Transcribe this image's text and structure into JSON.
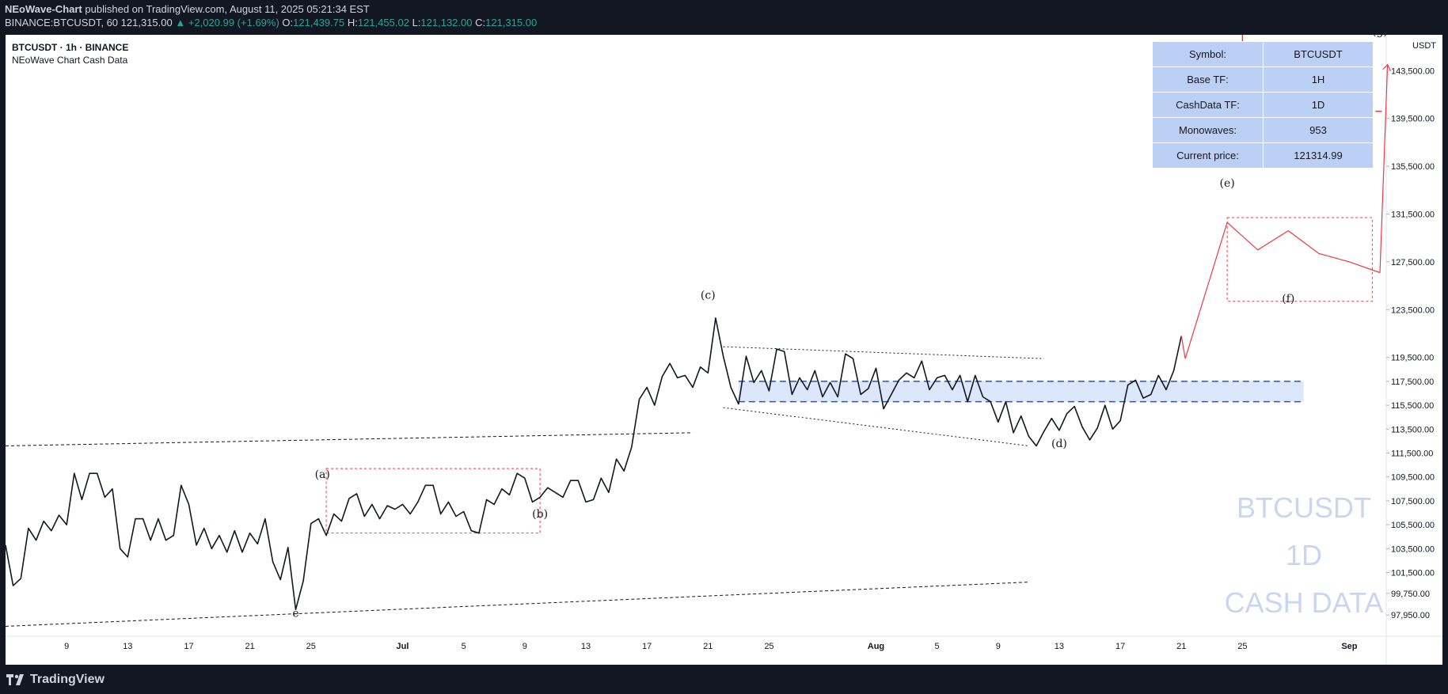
{
  "topbar": {
    "author": "NEoWave-Chart",
    "published_text": "published on TradingView.com, August 11, 2025 05:21:34 EST",
    "ticker": "BINANCE:BTCUSDT, 60",
    "last": "121,315.00",
    "change": "+2,020.99 (+1.69%)",
    "o_label": "O:",
    "o": "121,439.75",
    "h_label": "H:",
    "h": "121,455.02",
    "l_label": "L:",
    "l": "121,132.00",
    "c_label": "C:",
    "c": "121,315.00"
  },
  "header": {
    "symbol_line": "BTCUSDT · 1h · BINANCE",
    "indicator": "NEoWave Chart Cash Data"
  },
  "axis_currency": "USDT",
  "info_table": [
    {
      "key": "Symbol:",
      "value": "BTCUSDT"
    },
    {
      "key": "Base TF:",
      "value": "1H"
    },
    {
      "key": "CashData TF:",
      "value": "1D"
    },
    {
      "key": "Monowaves:",
      "value": "953"
    },
    {
      "key": "Current price:",
      "value": "121314.99"
    }
  ],
  "watermark": [
    "BTCUSDT",
    "1D",
    "CASH DATA"
  ],
  "footer": {
    "brand": "TradingView"
  },
  "colors": {
    "background": "#ffffff",
    "price_line": "#131722",
    "projection": "#f23645",
    "zone_fill": "#dce7fb",
    "zone_border": "#1e53e5",
    "table_cell": "#bcd0f5",
    "watermark": "#c9d6f1"
  },
  "chart_data": {
    "type": "line",
    "title": "BTCUSDT · 1h · BINANCE",
    "y_ticks": [
      97950,
      99750,
      101500,
      103500,
      105500,
      107500,
      109500,
      111500,
      113500,
      115500,
      117500,
      119500,
      123500,
      127500,
      131500,
      135500,
      139500,
      143500
    ],
    "y_tick_labels": [
      "97,950.00",
      "99,750.00",
      "101,500.00",
      "103,500.00",
      "105,500.00",
      "107,500.00",
      "109,500.00",
      "111,500.00",
      "113,500.00",
      "115,500.00",
      "117,500.00",
      "119,500.00",
      "123,500.00",
      "127,500.00",
      "131,500.00",
      "135,500.00",
      "139,500.00",
      "143,500.00"
    ],
    "ylim": [
      96700,
      146500
    ],
    "x_range": [
      "2025-06-05",
      "2025-09-03"
    ],
    "x_ticks": [
      {
        "date": "2025-06-09",
        "label": "9"
      },
      {
        "date": "2025-06-13",
        "label": "13"
      },
      {
        "date": "2025-06-17",
        "label": "17"
      },
      {
        "date": "2025-06-21",
        "label": "21"
      },
      {
        "date": "2025-06-25",
        "label": "25"
      },
      {
        "date": "2025-07-01",
        "label": "Jul"
      },
      {
        "date": "2025-07-05",
        "label": "5"
      },
      {
        "date": "2025-07-09",
        "label": "9"
      },
      {
        "date": "2025-07-13",
        "label": "13"
      },
      {
        "date": "2025-07-17",
        "label": "17"
      },
      {
        "date": "2025-07-21",
        "label": "21"
      },
      {
        "date": "2025-07-25",
        "label": "25"
      },
      {
        "date": "2025-08-01",
        "label": "Aug"
      },
      {
        "date": "2025-08-05",
        "label": "5"
      },
      {
        "date": "2025-08-09",
        "label": "9"
      },
      {
        "date": "2025-08-13",
        "label": "13"
      },
      {
        "date": "2025-08-17",
        "label": "17"
      },
      {
        "date": "2025-08-21",
        "label": "21"
      },
      {
        "date": "2025-08-25",
        "label": "25"
      },
      {
        "date": "2025-09-01",
        "label": "Sep"
      }
    ],
    "series": [
      {
        "points": [
          [
            "2025-06-05",
            103800
          ],
          [
            "2025-06-05T12",
            100400
          ],
          [
            "2025-06-06",
            101000
          ],
          [
            "2025-06-06T12",
            105200
          ],
          [
            "2025-06-07",
            104200
          ],
          [
            "2025-06-07T12",
            105800
          ],
          [
            "2025-06-08",
            105000
          ],
          [
            "2025-06-08T12",
            106300
          ],
          [
            "2025-06-09",
            105500
          ],
          [
            "2025-06-09T12",
            109800
          ],
          [
            "2025-06-10",
            107600
          ],
          [
            "2025-06-10T12",
            109800
          ],
          [
            "2025-06-11",
            109800
          ],
          [
            "2025-06-11T12",
            107800
          ],
          [
            "2025-06-12",
            108500
          ],
          [
            "2025-06-12T12",
            103500
          ],
          [
            "2025-06-13",
            102800
          ],
          [
            "2025-06-13T12",
            106000
          ],
          [
            "2025-06-14",
            106000
          ],
          [
            "2025-06-14T12",
            104200
          ],
          [
            "2025-06-15",
            106000
          ],
          [
            "2025-06-15T12",
            104200
          ],
          [
            "2025-06-16",
            104600
          ],
          [
            "2025-06-16T12",
            108800
          ],
          [
            "2025-06-17",
            107200
          ],
          [
            "2025-06-17T12",
            103800
          ],
          [
            "2025-06-18",
            105200
          ],
          [
            "2025-06-18T12",
            103500
          ],
          [
            "2025-06-19",
            104600
          ],
          [
            "2025-06-19T12",
            103200
          ],
          [
            "2025-06-20",
            105000
          ],
          [
            "2025-06-20T12",
            103200
          ],
          [
            "2025-06-21",
            104800
          ],
          [
            "2025-06-21T12",
            103900
          ],
          [
            "2025-06-22",
            106000
          ],
          [
            "2025-06-22T12",
            102400
          ],
          [
            "2025-06-23",
            100900
          ],
          [
            "2025-06-23T12",
            103600
          ],
          [
            "2025-06-24",
            98400
          ],
          [
            "2025-06-24T12",
            100800
          ],
          [
            "2025-06-25",
            105600
          ],
          [
            "2025-06-25T12",
            106000
          ],
          [
            "2025-06-26",
            104600
          ],
          [
            "2025-06-26T12",
            106400
          ],
          [
            "2025-06-27",
            105800
          ],
          [
            "2025-06-27T12",
            107700
          ],
          [
            "2025-06-28",
            108100
          ],
          [
            "2025-06-28T12",
            106200
          ],
          [
            "2025-06-29",
            107200
          ],
          [
            "2025-06-29T12",
            106000
          ],
          [
            "2025-06-30",
            107100
          ],
          [
            "2025-06-30T12",
            106800
          ],
          [
            "2025-07-01",
            107200
          ],
          [
            "2025-07-01T12",
            106400
          ],
          [
            "2025-07-02",
            107400
          ],
          [
            "2025-07-02T12",
            108800
          ],
          [
            "2025-07-03",
            108800
          ],
          [
            "2025-07-03T12",
            106400
          ],
          [
            "2025-07-04",
            107400
          ],
          [
            "2025-07-04T12",
            106200
          ],
          [
            "2025-07-05",
            106600
          ],
          [
            "2025-07-05T12",
            105000
          ],
          [
            "2025-07-06",
            104800
          ],
          [
            "2025-07-06T12",
            107600
          ],
          [
            "2025-07-07",
            107200
          ],
          [
            "2025-07-07T12",
            108500
          ],
          [
            "2025-07-08",
            108000
          ],
          [
            "2025-07-08T12",
            109800
          ],
          [
            "2025-07-09",
            109400
          ],
          [
            "2025-07-09T12",
            107400
          ],
          [
            "2025-07-10",
            107800
          ],
          [
            "2025-07-10T12",
            108600
          ],
          [
            "2025-07-11",
            108200
          ],
          [
            "2025-07-11T12",
            107800
          ],
          [
            "2025-07-12",
            109200
          ],
          [
            "2025-07-12T12",
            109200
          ],
          [
            "2025-07-13",
            107400
          ],
          [
            "2025-07-13T12",
            107600
          ],
          [
            "2025-07-14",
            109400
          ],
          [
            "2025-07-14T12",
            108200
          ],
          [
            "2025-07-15",
            111000
          ],
          [
            "2025-07-15T12",
            110000
          ],
          [
            "2025-07-16",
            112000
          ],
          [
            "2025-07-16T12",
            116000
          ],
          [
            "2025-07-17",
            117000
          ],
          [
            "2025-07-17T12",
            115500
          ],
          [
            "2025-07-18",
            117900
          ],
          [
            "2025-07-18T12",
            119000
          ],
          [
            "2025-07-19",
            117800
          ],
          [
            "2025-07-19T12",
            118000
          ],
          [
            "2025-07-20",
            117000
          ],
          [
            "2025-07-20T12",
            118700
          ],
          [
            "2025-07-21",
            118200
          ],
          [
            "2025-07-21T12",
            122800
          ],
          [
            "2025-07-22",
            119600
          ],
          [
            "2025-07-22T12",
            117000
          ],
          [
            "2025-07-23",
            115600
          ],
          [
            "2025-07-23T12",
            119600
          ],
          [
            "2025-07-24",
            117400
          ],
          [
            "2025-07-24T12",
            118400
          ],
          [
            "2025-07-25",
            116700
          ],
          [
            "2025-07-25T12",
            120200
          ],
          [
            "2025-07-26",
            120000
          ],
          [
            "2025-07-26T12",
            116400
          ],
          [
            "2025-07-27",
            117800
          ],
          [
            "2025-07-27T12",
            116800
          ],
          [
            "2025-07-28",
            118400
          ],
          [
            "2025-07-28T12",
            116200
          ],
          [
            "2025-07-29",
            117400
          ],
          [
            "2025-07-29T12",
            116200
          ],
          [
            "2025-07-30",
            119800
          ],
          [
            "2025-07-30T12",
            119400
          ],
          [
            "2025-07-31",
            116400
          ],
          [
            "2025-07-31T12",
            116900
          ],
          [
            "2025-08-01",
            118600
          ],
          [
            "2025-08-01T12",
            115200
          ],
          [
            "2025-08-02",
            116400
          ],
          [
            "2025-08-02T12",
            117600
          ],
          [
            "2025-08-03",
            118200
          ],
          [
            "2025-08-03T12",
            117800
          ],
          [
            "2025-08-04",
            119200
          ],
          [
            "2025-08-04T12",
            116800
          ],
          [
            "2025-08-05",
            117800
          ],
          [
            "2025-08-05T12",
            118000
          ],
          [
            "2025-08-06",
            116800
          ],
          [
            "2025-08-06T12",
            118000
          ],
          [
            "2025-08-07",
            115800
          ],
          [
            "2025-08-07T12",
            118000
          ],
          [
            "2025-08-08",
            116200
          ],
          [
            "2025-08-08T12",
            115800
          ],
          [
            "2025-08-09",
            114100
          ],
          [
            "2025-08-09T12",
            115800
          ],
          [
            "2025-08-10",
            113200
          ],
          [
            "2025-08-10T12",
            114600
          ],
          [
            "2025-08-11",
            112900
          ],
          [
            "2025-08-11T12",
            112100
          ],
          [
            "2025-08-12",
            113300
          ],
          [
            "2025-08-12T12",
            114400
          ],
          [
            "2025-08-13",
            113400
          ],
          [
            "2025-08-13T12",
            114800
          ],
          [
            "2025-08-14",
            115400
          ],
          [
            "2025-08-14T12",
            113700
          ],
          [
            "2025-08-15",
            112600
          ],
          [
            "2025-08-15T12",
            113600
          ],
          [
            "2025-08-16",
            115500
          ],
          [
            "2025-08-16T12",
            113500
          ],
          [
            "2025-08-17",
            114200
          ],
          [
            "2025-08-17T12",
            117200
          ],
          [
            "2025-08-18",
            117600
          ],
          [
            "2025-08-18T12",
            116100
          ],
          [
            "2025-08-19",
            116400
          ],
          [
            "2025-08-19T12",
            118000
          ],
          [
            "2025-08-20",
            116800
          ],
          [
            "2025-08-20T12",
            118400
          ],
          [
            "2025-08-21",
            121300
          ]
        ]
      },
      {
        "name": "projection",
        "points": [
          [
            "2025-08-21",
            121300
          ],
          [
            "2025-08-21T06",
            119400
          ],
          [
            "2025-08-24",
            130800
          ],
          [
            "2025-08-26",
            128500
          ],
          [
            "2025-08-28",
            130100
          ],
          [
            "2025-08-30",
            128200
          ],
          [
            "2025-09-01",
            127500
          ],
          [
            "2025-09-03",
            126600
          ]
        ]
      }
    ],
    "wave_labels": [
      {
        "label": "e",
        "date": "2025-06-24",
        "price": 97800
      },
      {
        "label": "(a)",
        "date": "2025-06-25T18",
        "price": 109400
      },
      {
        "label": "(b)",
        "date": "2025-07-10",
        "price": 106100
      },
      {
        "label": "(c)",
        "date": "2025-07-21",
        "price": 124400
      },
      {
        "label": "(d)",
        "date": "2025-08-13",
        "price": 112000
      },
      {
        "label": "(e)",
        "date": "2025-08-24",
        "price": 133800
      },
      {
        "label": "(f)",
        "date": "2025-08-28",
        "price": 124100
      },
      {
        "label": "(g)",
        "date": "2025-09-03",
        "price": 146500
      }
    ]
  }
}
